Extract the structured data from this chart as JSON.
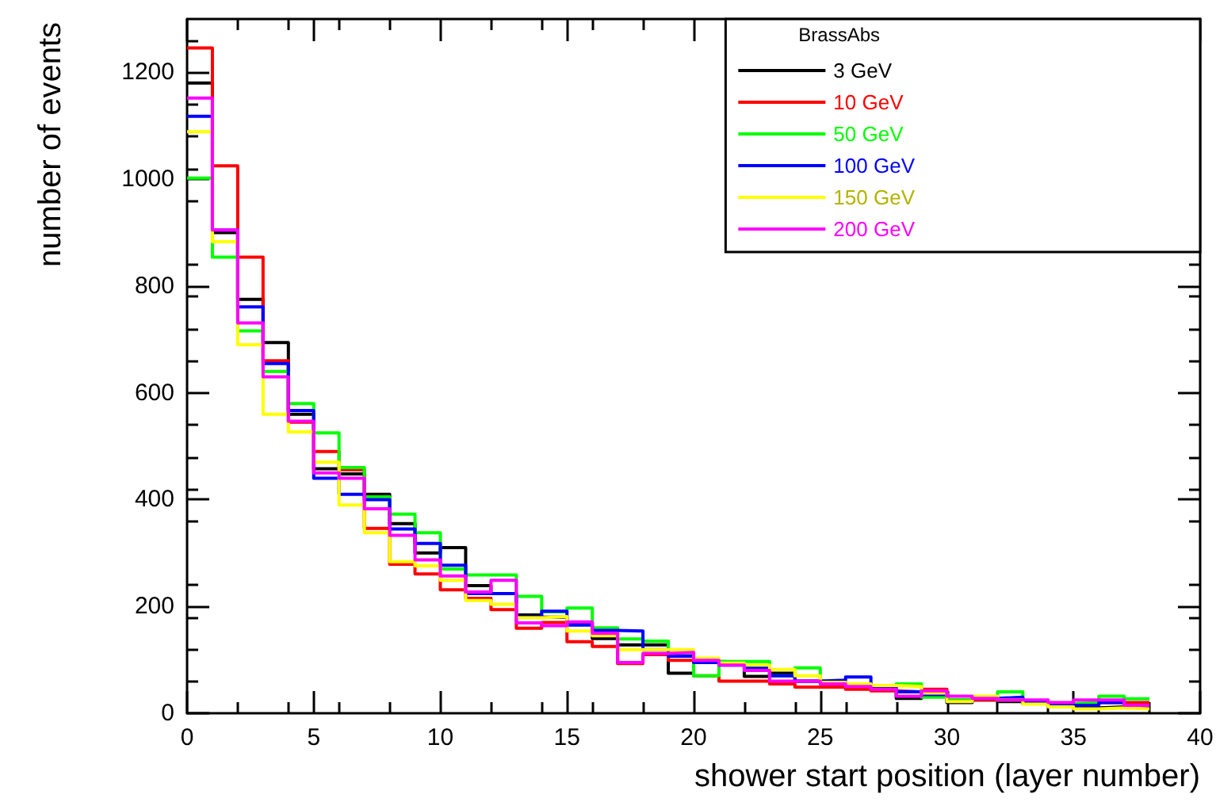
{
  "chart_data": {
    "type": "histogram",
    "xlabel": "shower start position (layer number)",
    "ylabel": "number of events",
    "legend_title": "BrassAbs",
    "bins": [
      0,
      1,
      2,
      3,
      4,
      5,
      6,
      7,
      8,
      9,
      10,
      11,
      12,
      13,
      14,
      15,
      16,
      17,
      18,
      19,
      20,
      21,
      22,
      23,
      24,
      25,
      26,
      27,
      28,
      29,
      30,
      31,
      32,
      33,
      34,
      35,
      36,
      37,
      38
    ],
    "series": [
      {
        "name": "3 GeV",
        "color": "#000000",
        "values": [
          1180,
          900,
          775,
          694,
          560,
          458,
          448,
          410,
          355,
          300,
          310,
          239,
          224,
          184,
          180,
          170,
          140,
          128,
          128,
          75,
          97,
          96,
          69,
          75,
          60,
          58,
          55,
          45,
          28,
          35,
          20,
          25,
          22,
          18,
          15,
          10,
          12,
          10
        ]
      },
      {
        "name": "10 GeV",
        "color": "#ff0000",
        "values": [
          1246,
          1025,
          854,
          660,
          545,
          490,
          456,
          346,
          279,
          261,
          231,
          215,
          194,
          159,
          170,
          134,
          125,
          93,
          110,
          99,
          70,
          60,
          60,
          55,
          49,
          49,
          45,
          42,
          40,
          45,
          25,
          25,
          28,
          18,
          15,
          15,
          20,
          20
        ]
      },
      {
        "name": "50 GeV",
        "color": "#00ff00",
        "values": [
          1002,
          854,
          716,
          640,
          580,
          525,
          460,
          405,
          373,
          338,
          270,
          259,
          259,
          219,
          190,
          197,
          160,
          139,
          135,
          110,
          70,
          97,
          97,
          70,
          85,
          55,
          52,
          50,
          55,
          30,
          25,
          30,
          40,
          20,
          18,
          20,
          32,
          27
        ]
      },
      {
        "name": "100 GeV",
        "color": "#0000ff",
        "values": [
          1118,
          905,
          761,
          655,
          567,
          440,
          410,
          400,
          345,
          318,
          277,
          224,
          224,
          180,
          191,
          165,
          155,
          154,
          119,
          107,
          95,
          90,
          85,
          70,
          60,
          62,
          68,
          50,
          40,
          35,
          22,
          28,
          30,
          20,
          15,
          15,
          20,
          15
        ]
      },
      {
        "name": "150 GeV",
        "color": "#ffff00",
        "values": [
          1089,
          883,
          690,
          560,
          527,
          470,
          390,
          338,
          284,
          276,
          249,
          211,
          204,
          179,
          181,
          154,
          145,
          119,
          119,
          119,
          103,
          94,
          90,
          82,
          70,
          58,
          55,
          52,
          50,
          38,
          22,
          32,
          25,
          17,
          12,
          8,
          10,
          8
        ]
      },
      {
        "name": "200 GeV",
        "color": "#ff00ff",
        "values": [
          1152,
          905,
          731,
          630,
          547,
          450,
          440,
          383,
          333,
          287,
          257,
          227,
          249,
          169,
          164,
          171,
          150,
          95,
          112,
          114,
          99,
          90,
          80,
          60,
          60,
          55,
          50,
          45,
          32,
          42,
          32,
          28,
          25,
          25,
          20,
          25,
          25,
          15
        ]
      }
    ],
    "xlim": [
      0,
      40
    ],
    "xticks": [
      0,
      5,
      10,
      15,
      20,
      25,
      30,
      35,
      40
    ],
    "ylim": [
      0,
      1300
    ],
    "yticks": [
      0,
      200,
      400,
      600,
      800,
      1000,
      1200
    ],
    "grid": false,
    "legend": "top right"
  }
}
